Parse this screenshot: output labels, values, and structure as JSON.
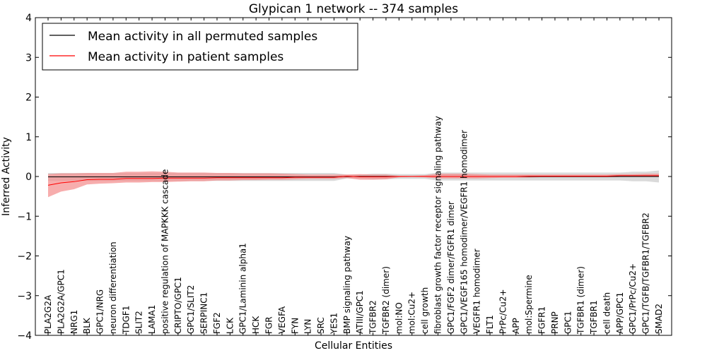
{
  "chart_data": {
    "type": "line",
    "title": "Glypican 1 network -- 374 samples",
    "xlabel": "Cellular Entities",
    "ylabel": "Inferred Activity",
    "ylim": [
      -4,
      4
    ],
    "yticks": [
      "4",
      "3",
      "2",
      "1",
      "0",
      "−1",
      "−2",
      "−3",
      "−4"
    ],
    "ytick_values": [
      4,
      3,
      2,
      1,
      0,
      -1,
      -2,
      -3,
      -4
    ],
    "grid": false,
    "legend_position": "top-left",
    "categories": [
      "PLA2G2A",
      "PLA2G2A/GPC1",
      "NRG1",
      "BLK",
      "GPC1/NRG",
      "neuron differentiation",
      "TDGF1",
      "SLIT2",
      "LAMA1",
      "positive regulation of MAPKKK cascade",
      "CRIPTO/GPC1",
      "GPC1/SLIT2",
      "SERPINC1",
      "FGF2",
      "LCK",
      "GPC1/Laminin alpha1",
      "HCK",
      "FGR",
      "VEGFA",
      "FYN",
      "LYN",
      "SRC",
      "YES1",
      "BMP signaling pathway",
      "ATIII/GPC1",
      "TGFBR2",
      "TGFBR2 (dimer)",
      "mol:NO",
      "mol:Cu2+",
      "cell growth",
      "fibroblast growth factor receptor signaling pathway",
      "GPC1/FGF2 dimer/FGFR1 dimer",
      "GPC1/VEGF165 homodimer/VEGFR1 homodimer",
      "VEGFR1 homodimer",
      "FLT1",
      "PrPc/Cu2+",
      "APP",
      "mol:Spermine",
      "FGFR1",
      "PRNP",
      "GPC1",
      "TGFBR1 (dimer)",
      "TGFBR1",
      "cell death",
      "APP/GPC1",
      "GPC1/PrPc/Cu2+",
      "GPC1/TGFB/TGFBR1/TGFBR2",
      "SMAD2"
    ],
    "series": [
      {
        "name": "Mean activity in all permuted samples",
        "color": "#000000",
        "band_color": "#bbbbbb",
        "values": [
          -0.01,
          -0.01,
          -0.01,
          -0.01,
          -0.01,
          -0.01,
          -0.01,
          -0.01,
          -0.01,
          -0.01,
          -0.01,
          -0.01,
          -0.01,
          -0.01,
          -0.01,
          -0.01,
          -0.01,
          -0.01,
          -0.01,
          -0.01,
          -0.01,
          -0.01,
          -0.01,
          0.0,
          0.0,
          0.0,
          0.0,
          0.0,
          0.0,
          0.0,
          0.0,
          0.0,
          0.0,
          0.0,
          0.0,
          0.0,
          0.0,
          0.0,
          0.0,
          0.0,
          0.0,
          0.0,
          0.0,
          0.0,
          0.0,
          0.0,
          0.0,
          0.0
        ],
        "band_low": [
          -0.11,
          -0.11,
          -0.11,
          -0.11,
          -0.11,
          -0.11,
          -0.11,
          -0.11,
          -0.11,
          -0.11,
          -0.11,
          -0.11,
          -0.11,
          -0.11,
          -0.11,
          -0.11,
          -0.11,
          -0.11,
          -0.11,
          -0.11,
          -0.11,
          -0.11,
          -0.11,
          -0.05,
          -0.05,
          -0.07,
          -0.07,
          -0.06,
          -0.06,
          -0.06,
          -0.1,
          -0.1,
          -0.1,
          -0.1,
          -0.1,
          -0.1,
          -0.1,
          -0.1,
          -0.1,
          -0.1,
          -0.1,
          -0.1,
          -0.1,
          -0.1,
          -0.1,
          -0.12,
          -0.12,
          -0.15
        ],
        "band_high": [
          0.09,
          0.09,
          0.09,
          0.09,
          0.09,
          0.09,
          0.09,
          0.09,
          0.09,
          0.09,
          0.09,
          0.09,
          0.09,
          0.09,
          0.09,
          0.09,
          0.09,
          0.09,
          0.09,
          0.09,
          0.09,
          0.09,
          0.09,
          0.05,
          0.05,
          0.07,
          0.07,
          0.06,
          0.06,
          0.06,
          0.1,
          0.1,
          0.1,
          0.1,
          0.1,
          0.1,
          0.1,
          0.1,
          0.1,
          0.1,
          0.1,
          0.1,
          0.1,
          0.1,
          0.1,
          0.12,
          0.12,
          0.15
        ]
      },
      {
        "name": "Mean activity in patient samples",
        "color": "#ff0000",
        "band_color": "#f48a8a",
        "values": [
          -0.22,
          -0.16,
          -0.13,
          -0.08,
          -0.07,
          -0.07,
          -0.05,
          -0.05,
          -0.05,
          -0.04,
          -0.04,
          -0.04,
          -0.04,
          -0.03,
          -0.03,
          -0.03,
          -0.03,
          -0.03,
          -0.03,
          -0.02,
          -0.02,
          -0.02,
          -0.02,
          0.01,
          -0.01,
          -0.01,
          -0.01,
          0.0,
          0.0,
          0.0,
          0.0,
          0.0,
          0.0,
          0.0,
          0.0,
          0.0,
          0.0,
          0.01,
          0.01,
          0.01,
          0.01,
          0.01,
          0.01,
          0.01,
          0.02,
          0.02,
          0.02,
          0.02
        ],
        "band_low": [
          -0.52,
          -0.38,
          -0.32,
          -0.2,
          -0.18,
          -0.17,
          -0.15,
          -0.15,
          -0.14,
          -0.14,
          -0.13,
          -0.12,
          -0.12,
          -0.1,
          -0.1,
          -0.09,
          -0.09,
          -0.08,
          -0.08,
          -0.07,
          -0.06,
          -0.06,
          -0.06,
          -0.04,
          -0.08,
          -0.08,
          -0.07,
          -0.02,
          -0.01,
          -0.02,
          -0.05,
          -0.05,
          -0.05,
          -0.05,
          -0.04,
          -0.03,
          -0.03,
          -0.03,
          -0.02,
          -0.02,
          -0.02,
          -0.02,
          -0.02,
          -0.02,
          -0.01,
          -0.01,
          -0.01,
          0.0
        ],
        "band_high": [
          0.06,
          0.08,
          0.08,
          0.09,
          0.09,
          0.09,
          0.12,
          0.12,
          0.13,
          0.12,
          0.1,
          0.1,
          0.1,
          0.09,
          0.09,
          0.08,
          0.08,
          0.08,
          0.07,
          0.06,
          0.05,
          0.05,
          0.05,
          0.05,
          0.06,
          0.05,
          0.05,
          0.02,
          0.02,
          0.03,
          0.07,
          0.07,
          0.07,
          0.06,
          0.05,
          0.05,
          0.05,
          0.05,
          0.05,
          0.05,
          0.05,
          0.05,
          0.05,
          0.05,
          0.06,
          0.06,
          0.07,
          0.07
        ]
      }
    ]
  }
}
